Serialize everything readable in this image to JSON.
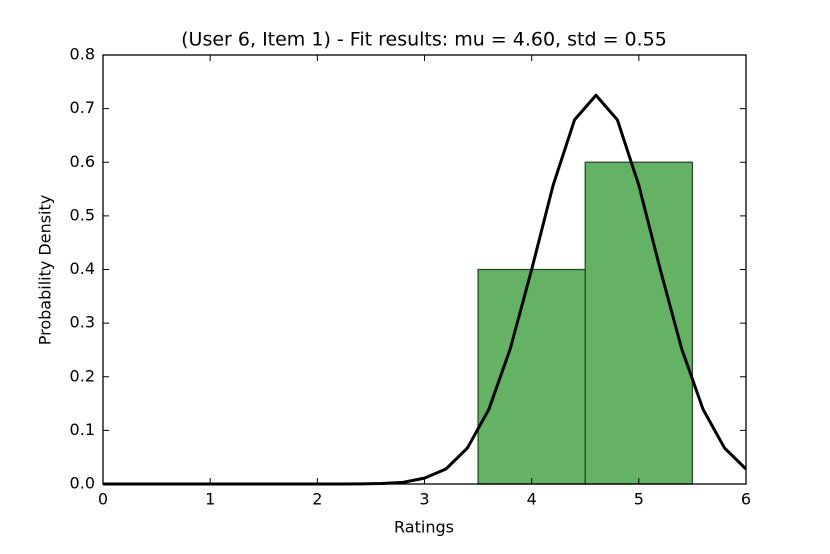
{
  "chart_data": {
    "type": "histogram",
    "title": "(User 6, Item 1) - Fit results: mu = 4.60,  std = 0.55",
    "xlabel": "Ratings",
    "ylabel": "Probability Density",
    "bins": [
      3.5,
      4.5,
      5.5
    ],
    "values": [
      0.4,
      0.6
    ],
    "color": "#64b264",
    "edgecolor": "#2a4a2a",
    "curve": {
      "type": "line",
      "color": "#000000",
      "x": [
        0,
        0.2,
        0.4,
        0.6,
        0.8,
        1.0,
        1.2,
        1.4,
        1.6,
        1.8,
        2.0,
        2.2,
        2.4,
        2.6,
        2.8,
        3.0,
        3.2,
        3.4,
        3.6,
        3.8,
        4.0,
        4.2,
        4.4,
        4.6,
        4.8,
        5.0,
        5.2,
        5.4,
        5.6,
        5.8,
        6.0
      ],
      "values": [
        0,
        0,
        0,
        0,
        0,
        0,
        0,
        0,
        0,
        0,
        0,
        0,
        0.0002,
        0.001,
        0.003,
        0.011,
        0.028,
        0.067,
        0.139,
        0.252,
        0.4,
        0.557,
        0.679,
        0.725,
        0.679,
        0.557,
        0.4,
        0.252,
        0.139,
        0.067,
        0.028
      ]
    },
    "xlim": [
      0,
      6
    ],
    "ylim": [
      0,
      0.8
    ],
    "xticks": [
      0,
      1,
      2,
      3,
      4,
      5,
      6
    ],
    "yticks": [
      {
        "value": 0,
        "label": "0.0"
      },
      {
        "value": 0.1,
        "label": "0.1"
      },
      {
        "value": 0.2,
        "label": "0.2"
      },
      {
        "value": 0.3,
        "label": "0.3"
      },
      {
        "value": 0.4,
        "label": "0.4"
      },
      {
        "value": 0.5,
        "label": "0.5"
      },
      {
        "value": 0.6,
        "label": "0.6"
      },
      {
        "value": 0.7,
        "label": "0.7"
      },
      {
        "value": 0.8,
        "label": "0.8"
      }
    ],
    "grid": false
  }
}
